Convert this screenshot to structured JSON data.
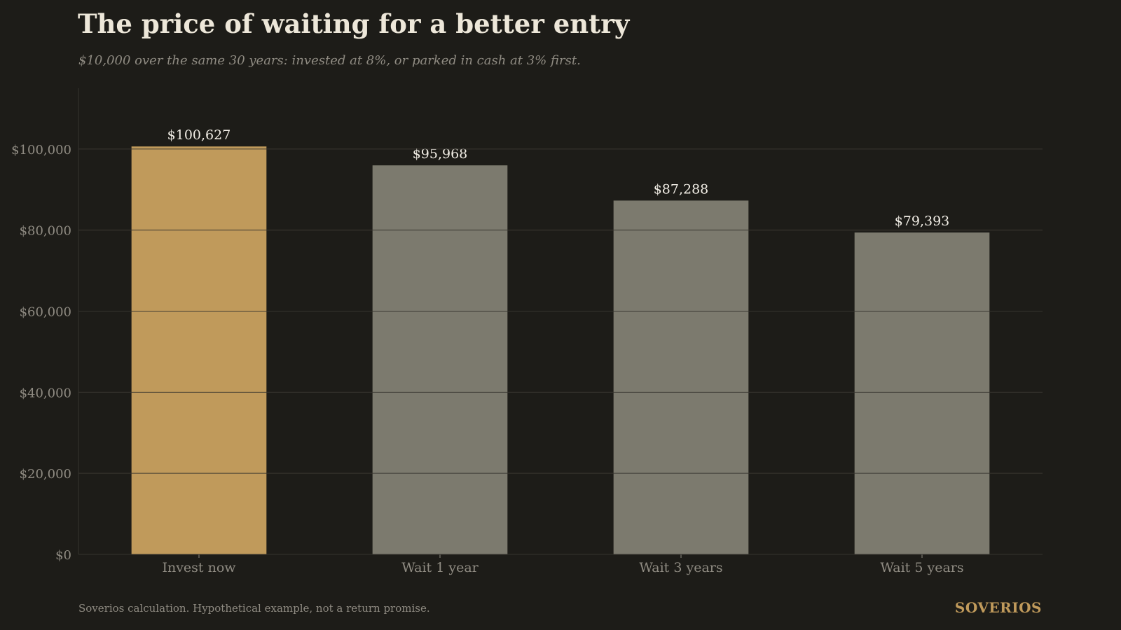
{
  "chart_data": {
    "type": "bar",
    "title": "The price of waiting for a better entry",
    "subtitle": "$10,000 over the same 30 years: invested at 8%, or parked in cash at 3% first.",
    "xlabel": "",
    "ylabel": "",
    "categories": [
      "Invest now",
      "Wait 1 year",
      "Wait 3 years",
      "Wait 5 years"
    ],
    "values": [
      100627,
      95968,
      87288,
      79393
    ],
    "value_labels": [
      "$100,627",
      "$95,968",
      "$87,288",
      "$79,393"
    ],
    "ylim": [
      0,
      115000
    ],
    "y_ticks": [
      0,
      20000,
      40000,
      60000,
      80000,
      100000
    ],
    "y_tick_labels": [
      "$0",
      "$20,000",
      "$40,000",
      "$60,000",
      "$80,000",
      "$100,000"
    ],
    "grid": true,
    "legend": "none",
    "colors": {
      "highlight": "#c09a5b",
      "bar": "#7c7a6e",
      "grid": "#35332e",
      "axis_text": "#8f8b82",
      "value_text": "#f2eee6"
    },
    "highlight_index": 0
  },
  "footer": {
    "source": "Soverios calculation. Hypothetical example, not a return promise.",
    "brand": "SOVERIOS"
  }
}
